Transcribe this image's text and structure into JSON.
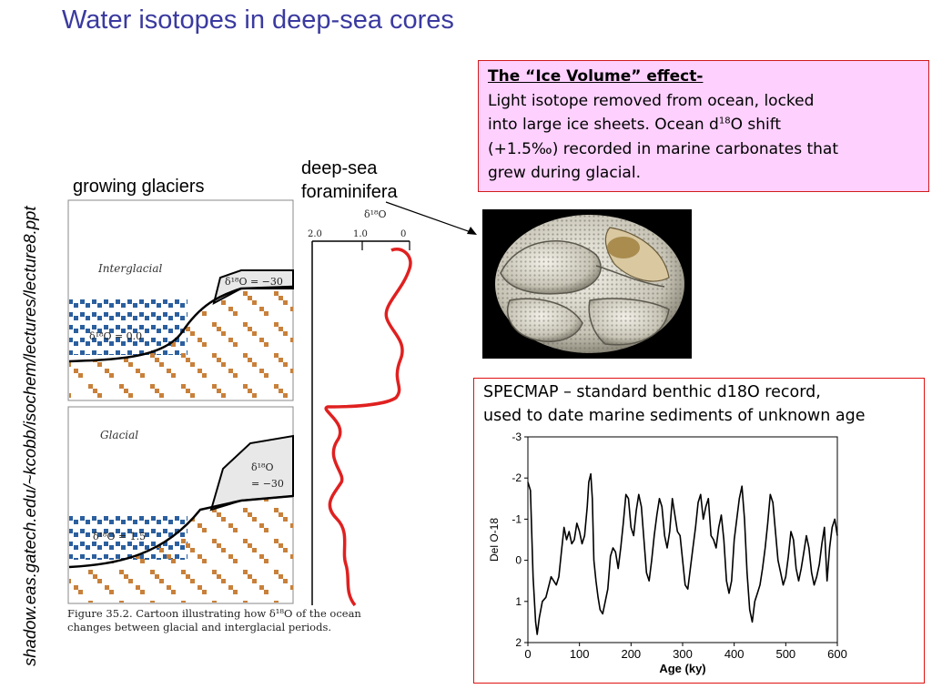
{
  "slide": {
    "title": "Water isotopes in deep-sea cores",
    "side_credit": "shadow.eas.gatech.edu/~kcobb/isochem/lectures/lecture8.ppt",
    "growing_label": "growing glaciers",
    "deepsea_label_line1": "deep-sea",
    "deepsea_label_line2": "foraminifera"
  },
  "ice_box": {
    "heading": "The “Ice Volume” effect-",
    "line1": "Light isotope removed from ocean, locked",
    "line2_pre": "into large ice sheets. Ocean d",
    "line2_sup": "18",
    "line2_post": "O shift",
    "line3": "(+1.5‰) recorded in marine carbonates that",
    "line4": "grew during glacial."
  },
  "specmap_text": {
    "line1": "SPECMAP – standard benthic d18O record,",
    "line2": "used to date marine sediments of unknown age"
  },
  "cartoon": {
    "interglacial_label": "Interglacial",
    "glacial_label": "Glacial",
    "ice_d18o_interglacial": "δ¹⁸O = −30",
    "ocean_d18o_interglacial": "δ¹⁸O = 0.0",
    "ice_d18o_glacial_a": "δ¹⁸O",
    "ice_d18o_glacial_b": "= −30",
    "ocean_d18o_glacial": "δ¹⁸O = 1.5",
    "caption_line1": "Figure 35.2.  Cartoon illustrating how  δ¹⁸O of the  ocean",
    "caption_line2": "changes between glacial and interglacial periods.",
    "colors": {
      "ocean": "#2b5f9e",
      "sediment": "#c8803a",
      "ice": "#e8e8e8"
    }
  },
  "schematic_record": {
    "axis_title": "δ¹⁸O",
    "ticks": [
      "2.0",
      "1.0",
      "0"
    ],
    "color": "#e02020"
  },
  "chart_data": {
    "type": "line",
    "xlabel": "Age (ky)",
    "ylabel": "Del O-18",
    "xlim": [
      0,
      600
    ],
    "ylim": [
      -3,
      2
    ],
    "y_inverted": true,
    "x_ticks": [
      "0",
      "100",
      "200",
      "300",
      "400",
      "500",
      "600"
    ],
    "y_ticks": [
      "-3",
      "-2",
      "-1",
      "0",
      "1",
      "2"
    ],
    "series": [
      {
        "x": [
          0,
          5,
          10,
          15,
          18,
          22,
          28,
          35,
          45,
          55,
          60,
          65,
          70,
          75,
          80,
          85,
          90,
          95,
          100,
          105,
          110,
          115,
          118,
          122,
          125,
          128,
          132,
          136,
          140,
          145,
          150,
          155,
          160,
          165,
          170,
          175,
          180,
          185,
          190,
          195,
          200,
          205,
          210,
          215,
          220,
          225,
          230,
          235,
          240,
          245,
          250,
          255,
          260,
          265,
          270,
          275,
          280,
          285,
          290,
          295,
          300,
          305,
          310,
          315,
          320,
          325,
          330,
          335,
          340,
          345,
          350,
          355,
          360,
          365,
          370,
          375,
          380,
          385,
          390,
          395,
          400,
          405,
          410,
          415,
          420,
          425,
          430,
          435,
          440,
          445,
          450,
          455,
          460,
          465,
          470,
          475,
          480,
          485,
          490,
          495,
          500,
          505,
          510,
          515,
          520,
          525,
          530,
          535,
          540,
          545,
          550,
          555,
          560,
          565,
          570,
          575,
          580,
          585,
          590,
          595,
          600
        ],
        "y": [
          -1.9,
          -1.7,
          0.4,
          1.5,
          1.8,
          1.4,
          1.0,
          0.9,
          0.4,
          0.6,
          0.4,
          -0.2,
          -0.8,
          -0.5,
          -0.7,
          -0.4,
          -0.5,
          -0.9,
          -0.7,
          -0.4,
          -0.6,
          -1.3,
          -1.9,
          -2.1,
          -1.5,
          0.0,
          0.5,
          0.9,
          1.2,
          1.3,
          1.0,
          0.7,
          -0.1,
          -0.3,
          -0.2,
          0.2,
          -0.3,
          -0.9,
          -1.6,
          -1.5,
          -0.8,
          -0.6,
          -1.2,
          -1.6,
          -1.3,
          -0.5,
          0.3,
          0.5,
          0.0,
          -0.6,
          -1.1,
          -1.5,
          -1.3,
          -0.6,
          -0.3,
          -0.7,
          -1.5,
          -1.1,
          -0.7,
          -0.6,
          0.0,
          0.6,
          0.7,
          0.2,
          -0.3,
          -0.8,
          -1.4,
          -1.6,
          -1.0,
          -1.3,
          -1.5,
          -0.6,
          -0.5,
          -0.3,
          -0.8,
          -1.1,
          -0.5,
          0.5,
          0.8,
          0.5,
          -0.5,
          -1.0,
          -1.5,
          -1.8,
          -1.0,
          0.3,
          1.2,
          1.5,
          1.0,
          0.8,
          0.6,
          0.2,
          -0.3,
          -0.9,
          -1.6,
          -1.4,
          -0.7,
          0.0,
          0.3,
          0.6,
          0.4,
          -0.1,
          -0.7,
          -0.5,
          0.2,
          0.5,
          0.2,
          -0.2,
          -0.6,
          -0.3,
          0.3,
          0.6,
          0.4,
          0.1,
          -0.4,
          -0.8,
          0.5,
          -0.3,
          -0.8,
          -1.0,
          -0.6
        ]
      }
    ]
  }
}
